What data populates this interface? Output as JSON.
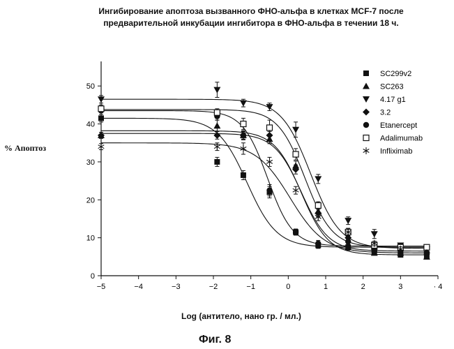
{
  "chart_data": {
    "type": "scatter",
    "title_line1": "Ингибирование апоптоза вызванного ФНО-альфа в клетках MCF-7 после",
    "title_line2": "предварительной инкубации ингибитора в ФНО-альфа в течении 18 ч.",
    "xlabel": "Log (антитело, нано гр. / мл.)",
    "ylabel": "% Апоптоз",
    "caption": "Фиг. 8",
    "xlim": [
      -5,
      4
    ],
    "ylim": [
      0,
      55
    ],
    "xticks": [
      -5,
      -4,
      -3,
      -2,
      -1,
      0,
      1,
      2,
      3,
      4
    ],
    "xtick_labels": [
      "−5",
      "−4",
      "−3",
      "−2",
      "−1",
      "0",
      "1",
      "2",
      "3",
      "· 4"
    ],
    "yticks": [
      0,
      10,
      20,
      30,
      40,
      50
    ],
    "ytick_labels": [
      "0",
      "10",
      "20",
      "30",
      "40",
      "50"
    ],
    "grid": false,
    "legend_position": "top-right",
    "series": [
      {
        "name": "SC299v2",
        "marker": "square-filled",
        "x": [
          -5,
          -1.9,
          -1.2,
          -0.5,
          0.2,
          0.8,
          1.6,
          2.3,
          3.0,
          3.7
        ],
        "y": [
          41.5,
          30,
          26.5,
          22,
          11.5,
          8,
          7.5,
          6.5,
          5.5,
          5
        ],
        "errors": [
          1,
          1.2,
          1.2,
          1.5,
          0.8,
          0.8,
          0.6,
          0.6,
          0.5,
          0.5
        ],
        "fit": {
          "top": 41.5,
          "bottom": 7.5,
          "ec50": -1.1,
          "slope": 1.1
        }
      },
      {
        "name": "SC263",
        "marker": "triangle-up",
        "x": [
          -5,
          -1.9,
          -1.2,
          -0.5,
          0.2,
          0.8,
          1.6,
          2.3,
          3.0,
          3.7
        ],
        "y": [
          37,
          39.5,
          37,
          36,
          29,
          17,
          7.5,
          6,
          6,
          5
        ],
        "errors": [
          0.8,
          1.5,
          1,
          1.2,
          1.2,
          1,
          0.8,
          0.6,
          0.6,
          0.5
        ],
        "fit": {
          "top": 38.2,
          "bottom": 5.5,
          "ec50": 0.35,
          "slope": 1.2
        }
      },
      {
        "name": "4.17 g1",
        "marker": "triangle-down",
        "x": [
          -5,
          -1.9,
          -1.2,
          -0.5,
          0.2,
          0.8,
          1.6,
          2.3,
          3.0,
          3.7
        ],
        "y": [
          46.5,
          49,
          45.5,
          44.5,
          38.5,
          25.5,
          14.5,
          11,
          8,
          7
        ],
        "errors": [
          1,
          2,
          1,
          1,
          2,
          1.2,
          1,
          1.2,
          0.6,
          0.6
        ],
        "fit": {
          "top": 46.5,
          "bottom": 7.2,
          "ec50": 0.6,
          "slope": 1.1
        }
      },
      {
        "name": "3.2",
        "marker": "diamond",
        "x": [
          -5,
          -1.9,
          -1.2,
          -0.5,
          0.2,
          0.8,
          1.6,
          2.3,
          3.0,
          3.7
        ],
        "y": [
          37,
          37,
          37,
          37,
          28,
          16.5,
          10,
          7,
          6.5,
          6
        ],
        "errors": [
          0.8,
          1,
          1,
          1,
          1.2,
          1,
          0.8,
          0.6,
          0.6,
          0.5
        ],
        "fit": {
          "top": 37.5,
          "bottom": 6.5,
          "ec50": 0.35,
          "slope": 1.2
        }
      },
      {
        "name": "Etanercept",
        "marker": "circle-filled",
        "x": [
          -5,
          -1.9,
          -1.2,
          -0.5,
          0.2,
          0.8,
          1.6,
          2.3,
          3.0,
          3.7
        ],
        "y": [
          43.5,
          42,
          37,
          22.5,
          11.5,
          8.5,
          9,
          6.5,
          6,
          6
        ],
        "errors": [
          1,
          1,
          1.2,
          1.5,
          0.8,
          0.8,
          0.8,
          0.6,
          0.5,
          0.5
        ],
        "fit": {
          "top": 43.5,
          "bottom": 7.8,
          "ec50": -0.55,
          "slope": 1.3
        }
      },
      {
        "name": "Adalimumab",
        "marker": "square-open",
        "x": [
          -5,
          -1.9,
          -1.2,
          -0.5,
          0.2,
          0.8,
          1.6,
          2.3,
          3.0,
          3.7
        ],
        "y": [
          44,
          43,
          40,
          39,
          32,
          18.5,
          11.5,
          8,
          7.5,
          7.5
        ],
        "errors": [
          1,
          1,
          1.5,
          2,
          1.5,
          1,
          1,
          0.8,
          0.6,
          0.6
        ],
        "fit": {
          "top": 43.8,
          "bottom": 7.5,
          "ec50": 0.45,
          "slope": 1.2
        }
      },
      {
        "name": "Infliximab",
        "marker": "asterisk",
        "x": [
          -5,
          -1.9,
          -1.2,
          -0.5,
          0.2,
          0.8,
          1.6,
          2.3,
          3.0,
          3.7
        ],
        "y": [
          34,
          34,
          33.5,
          30,
          22.5,
          15.5,
          11.5,
          8.5,
          7,
          6
        ],
        "errors": [
          0.8,
          1,
          1.5,
          1.2,
          1,
          1,
          0.8,
          0.6,
          0.6,
          0.5
        ],
        "fit": {
          "top": 35,
          "bottom": 6,
          "ec50": 0.05,
          "slope": 0.95
        }
      }
    ]
  }
}
